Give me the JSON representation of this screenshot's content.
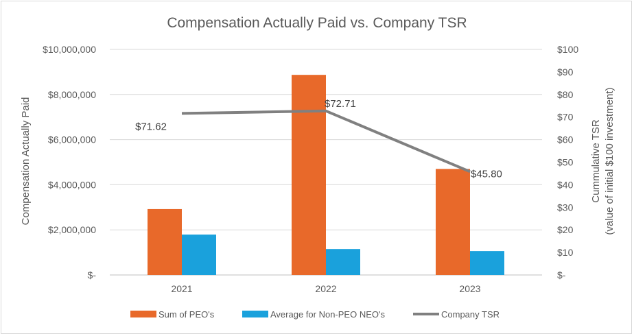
{
  "chart_data": {
    "type": "bar",
    "title": "Compensation Actually Paid vs. Company TSR",
    "categories": [
      "2021",
      "2022",
      "2023"
    ],
    "series": [
      {
        "name": "Sum of PEO's",
        "axis": "left",
        "kind": "bar",
        "color": "#E8692A",
        "values": [
          2920000,
          8870000,
          4700000
        ]
      },
      {
        "name": "Average for Non-PEO NEO's",
        "axis": "left",
        "kind": "bar",
        "color": "#1AA1DC",
        "values": [
          1790000,
          1150000,
          1060000
        ]
      },
      {
        "name": "Company TSR",
        "axis": "right",
        "kind": "line",
        "color": "#808080",
        "values": [
          71.62,
          72.71,
          45.8
        ],
        "labels": [
          "$71.62",
          "$72.71",
          "$45.80"
        ]
      }
    ],
    "y_left": {
      "label": "Compensation Actually Paid",
      "range": [
        0,
        10000000
      ],
      "ticks": [
        0,
        2000000,
        4000000,
        6000000,
        8000000,
        10000000
      ],
      "tick_labels": [
        "$-",
        "$2,000,000",
        "$4,000,000",
        "$6,000,000",
        "$8,000,000",
        "$10,000,000"
      ]
    },
    "y_right": {
      "label_line1": "Cummulative TSR",
      "label_line2": "(value of initial $100 investment)",
      "range": [
        0,
        100
      ],
      "ticks": [
        0,
        10,
        20,
        30,
        40,
        50,
        60,
        70,
        80,
        90,
        100
      ],
      "tick_labels": [
        "$-",
        "$10",
        "$20",
        "$30",
        "$40",
        "$50",
        "$60",
        "$70",
        "$80",
        "$90",
        "$100"
      ]
    },
    "legend": {
      "position": "bottom",
      "items": [
        "Sum of PEO's",
        "Average for Non-PEO NEO's",
        "Company TSR"
      ]
    },
    "grid": true
  }
}
